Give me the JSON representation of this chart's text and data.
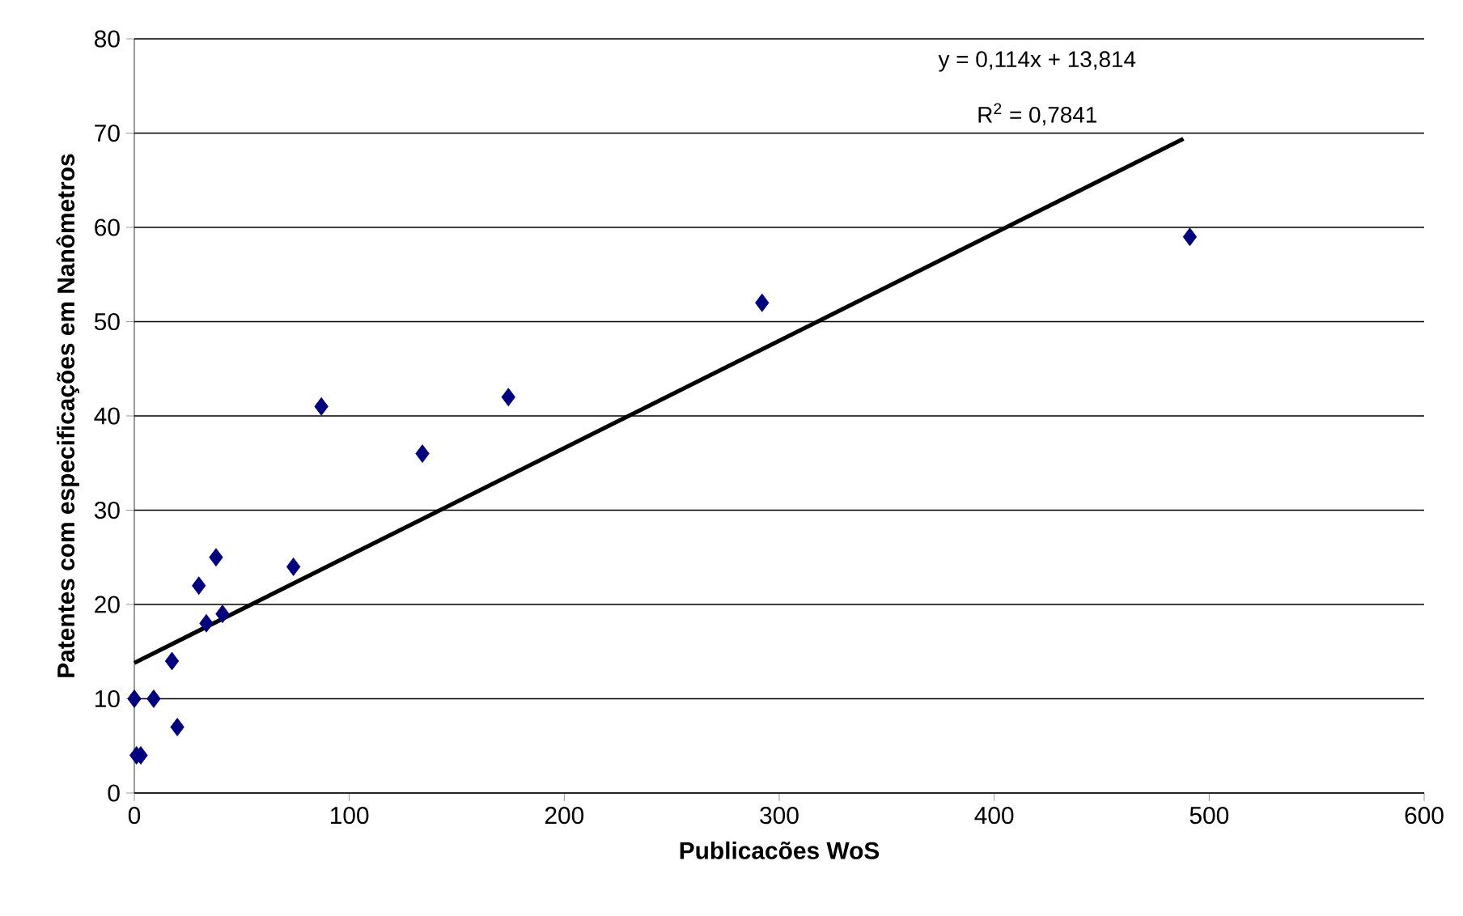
{
  "chart_data": {
    "type": "scatter",
    "xlabel": "Publicacões WoS",
    "ylabel": "Patentes com especificações em Nanômetros",
    "xlim": [
      0,
      600
    ],
    "xticks": [
      0,
      100,
      200,
      300,
      400,
      500,
      600
    ],
    "ylim": [
      0,
      80
    ],
    "yticks": [
      0,
      10,
      20,
      30,
      40,
      50,
      60,
      70,
      80
    ],
    "grid": "y",
    "annotations": [
      "y = 0,114x + 13,814",
      "R$^{2}$ = 0,7841"
    ],
    "series": [
      {
        "color": "#000080",
        "marker": "diamond",
        "x": [
          0,
          1,
          3,
          9,
          17.5,
          20,
          30,
          33.5,
          38,
          41,
          74,
          87,
          134,
          174,
          292,
          491
        ],
        "values": [
          10,
          4,
          4,
          10,
          14,
          7,
          22,
          18,
          25,
          19,
          24,
          41,
          36,
          42,
          52,
          59
        ]
      },
      {
        "type": "line",
        "color": "#000000",
        "marker": "none",
        "line_style": "solid",
        "x": [
          0,
          488
        ],
        "values": [
          13.8,
          69.4
        ]
      }
    ]
  }
}
